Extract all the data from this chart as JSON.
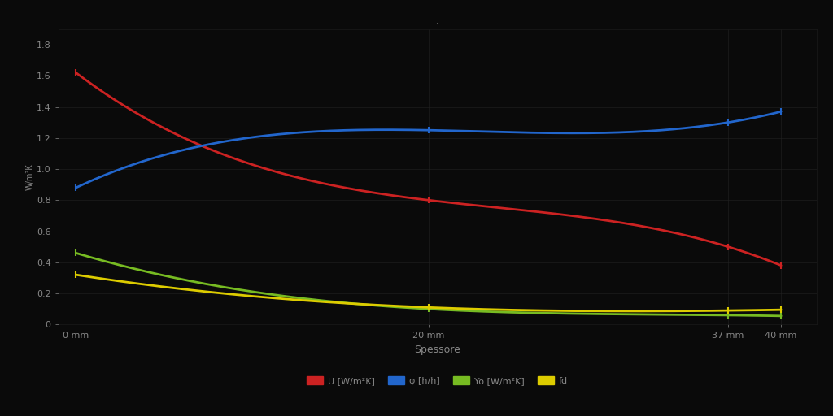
{
  "title": ".",
  "xlabel": "Spessore",
  "ylabel": "W/m²K",
  "background_color": "#0a0a0a",
  "text_color": "#888888",
  "grid_color": "#222222",
  "x_values": [
    0,
    20,
    37,
    40
  ],
  "x_labels": [
    "0 mm",
    "20 mm",
    "37 mm",
    "40 mm"
  ],
  "series": [
    {
      "label": "U [W/m²K]",
      "color": "#cc2222",
      "data": [
        1.62,
        0.8,
        0.5,
        0.38
      ]
    },
    {
      "label": "φ [h/h]",
      "color": "#2266cc",
      "data": [
        0.88,
        1.25,
        1.3,
        1.37
      ]
    },
    {
      "label": "Yo [W/m²K]",
      "color": "#77bb22",
      "data": [
        0.46,
        0.1,
        0.06,
        0.055
      ]
    },
    {
      "label": "fd",
      "color": "#ddcc00",
      "data": [
        0.32,
        0.11,
        0.09,
        0.095
      ]
    }
  ],
  "ylim": [
    0,
    1.9
  ],
  "yticks": [
    0,
    0.2,
    0.4,
    0.6,
    0.8,
    1.0,
    1.2,
    1.4,
    1.6,
    1.8
  ],
  "figsize": [
    10.24,
    5.12
  ],
  "dpi": 100,
  "legend_ncol": 4
}
